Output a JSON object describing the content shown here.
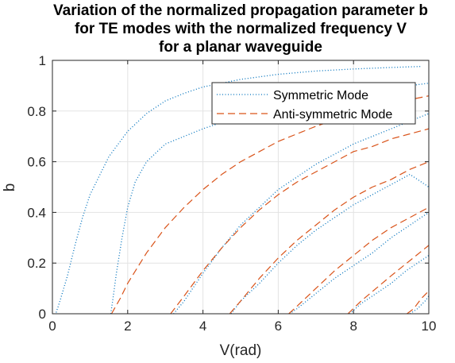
{
  "chart_data": {
    "type": "line",
    "title": [
      "Variation of the normalized propagation parameter b",
      "for TE modes with the normalized frequency V",
      "for a planar waveguide"
    ],
    "xlabel": "V(rad)",
    "ylabel": "b",
    "xlim": [
      0,
      10
    ],
    "ylim": [
      0,
      1
    ],
    "xticks": [
      0,
      2,
      4,
      6,
      8,
      10
    ],
    "yticks": [
      0,
      0.2,
      0.4,
      0.6,
      0.8,
      1
    ],
    "xtick_labels": [
      "0",
      "2",
      "4",
      "6",
      "8",
      "10"
    ],
    "ytick_labels": [
      "0",
      "0.2",
      "0.4",
      "0.6",
      "0.8",
      "1"
    ],
    "grid": true,
    "legend_position": "top-right",
    "series": [
      {
        "name": "Symmetric Mode",
        "color": "#0072BD",
        "style": "dotted",
        "curves": [
          {
            "x": [
              0.1,
              0.2,
              0.4,
              0.6,
              0.8,
              1.0,
              1.5,
              2.0,
              2.5,
              3.0,
              3.5,
              4.0,
              5.0,
              6.0,
              7.0,
              8.0,
              9.0,
              9.8
            ],
            "y": [
              0.005,
              0.05,
              0.15,
              0.27,
              0.38,
              0.47,
              0.62,
              0.72,
              0.79,
              0.84,
              0.87,
              0.895,
              0.925,
              0.945,
              0.958,
              0.966,
              0.972,
              0.976
            ]
          },
          {
            "x": [
              1.55,
              1.6,
              1.7,
              1.85,
              2.0,
              2.2,
              2.5,
              3.0,
              3.5,
              4.0,
              5.0,
              6.0,
              7.0,
              8.0,
              9.0,
              10.0
            ],
            "y": [
              0.0,
              0.05,
              0.16,
              0.3,
              0.42,
              0.52,
              0.6,
              0.67,
              0.7,
              0.73,
              0.78,
              0.82,
              0.85,
              0.87,
              0.89,
              0.91
            ]
          },
          {
            "x": [
              3.22,
              3.5,
              4.0,
              4.5,
              5.0,
              5.5,
              6.0,
              6.5,
              7.0,
              7.5,
              8.0,
              8.5,
              9.0,
              9.5,
              10.0
            ],
            "y": [
              0.0,
              0.05,
              0.16,
              0.26,
              0.35,
              0.42,
              0.49,
              0.54,
              0.59,
              0.63,
              0.67,
              0.7,
              0.73,
              0.76,
              0.79
            ]
          },
          {
            "x": [
              4.75,
              5.0,
              5.5,
              6.0,
              6.5,
              7.0,
              7.5,
              8.0,
              8.5,
              9.0,
              9.5,
              10.0
            ],
            "y": [
              0.0,
              0.05,
              0.12,
              0.2,
              0.27,
              0.33,
              0.38,
              0.43,
              0.47,
              0.51,
              0.55,
              0.5
            ]
          },
          {
            "x": [
              6.3,
              6.5,
              7.0,
              7.5,
              8.0,
              8.5,
              9.0,
              9.5,
              10.0
            ],
            "y": [
              0.0,
              0.02,
              0.08,
              0.14,
              0.19,
              0.24,
              0.3,
              0.35,
              0.4
            ]
          },
          {
            "x": [
              7.9,
              8.2,
              8.6,
              9.0,
              9.4,
              9.8,
              10.0
            ],
            "y": [
              0.0,
              0.04,
              0.08,
              0.12,
              0.17,
              0.21,
              0.23
            ]
          },
          {
            "x": [
              9.5,
              9.7,
              9.9,
              10.0
            ],
            "y": [
              0.0,
              0.02,
              0.05,
              0.07
            ]
          }
        ]
      },
      {
        "name": "Anti-symmetric Mode",
        "color": "#D95319",
        "style": "dashed",
        "curves": [
          {
            "x": [
              1.57,
              1.8,
              2.0,
              2.5,
              3.0,
              3.5,
              4.0,
              4.5,
              5.0,
              5.5,
              6.0,
              7.0,
              8.0,
              9.0,
              10.0
            ],
            "y": [
              0.0,
              0.06,
              0.12,
              0.24,
              0.34,
              0.42,
              0.49,
              0.55,
              0.6,
              0.64,
              0.68,
              0.74,
              0.79,
              0.83,
              0.86
            ]
          },
          {
            "x": [
              3.14,
              3.5,
              4.0,
              4.5,
              5.0,
              5.5,
              6.0,
              6.5,
              7.0,
              7.5,
              8.0,
              8.5,
              9.0,
              9.5,
              10.0
            ],
            "y": [
              0.0,
              0.07,
              0.17,
              0.26,
              0.34,
              0.41,
              0.47,
              0.52,
              0.56,
              0.6,
              0.64,
              0.66,
              0.69,
              0.71,
              0.73
            ]
          },
          {
            "x": [
              4.71,
              5.0,
              5.5,
              6.0,
              6.5,
              7.0,
              7.5,
              8.0,
              8.5,
              9.0,
              9.5,
              10.0
            ],
            "y": [
              0.0,
              0.05,
              0.14,
              0.22,
              0.29,
              0.35,
              0.41,
              0.46,
              0.5,
              0.53,
              0.57,
              0.6
            ]
          },
          {
            "x": [
              6.28,
              6.5,
              7.0,
              7.5,
              8.0,
              8.5,
              9.0,
              9.5,
              10.0
            ],
            "y": [
              0.0,
              0.03,
              0.1,
              0.17,
              0.23,
              0.29,
              0.34,
              0.38,
              0.42
            ]
          },
          {
            "x": [
              7.85,
              8.2,
              8.6,
              9.0,
              9.5,
              10.0
            ],
            "y": [
              0.0,
              0.05,
              0.1,
              0.15,
              0.21,
              0.27
            ]
          },
          {
            "x": [
              9.42,
              9.6,
              9.8,
              10.0
            ],
            "y": [
              0.0,
              0.02,
              0.06,
              0.09
            ]
          }
        ]
      }
    ]
  }
}
